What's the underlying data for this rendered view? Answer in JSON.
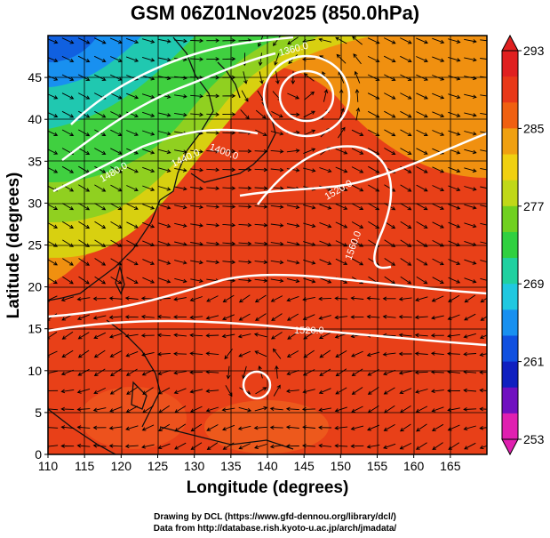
{
  "title": "GSM 06Z01Nov2025 (850.0hPa)",
  "map": {
    "xlabel": "Longitude (degrees)",
    "ylabel": "Latitude  (degrees)",
    "x_ticks": [
      110,
      115,
      120,
      125,
      130,
      135,
      140,
      145,
      150,
      155,
      160,
      165
    ],
    "y_ticks": [
      0,
      5,
      10,
      15,
      20,
      25,
      30,
      35,
      40,
      45
    ],
    "xlim": [
      110,
      170
    ],
    "ylim": [
      0,
      50
    ],
    "field": "temperature",
    "colorbar": {
      "ticks": [
        253,
        261,
        269,
        277,
        285,
        293
      ],
      "range": [
        253,
        293
      ],
      "colors": [
        "#e020b0",
        "#7010c0",
        "#1020c0",
        "#1050e0",
        "#1890f0",
        "#20c8e0",
        "#20d0a0",
        "#30d040",
        "#70d020",
        "#c0d818",
        "#f0d010",
        "#f0a010",
        "#f06010",
        "#e83818",
        "#e02020"
      ]
    },
    "contours": [
      {
        "label": "1520.0",
        "lon": 138.5,
        "lat": 16.5
      },
      {
        "label": "1560.0",
        "lon": 152.5,
        "lat": 28
      },
      {
        "label": "1520.0",
        "lon": 150,
        "lat": 35
      },
      {
        "label": "1480.0",
        "lon": 118,
        "lat": 34
      },
      {
        "label": "1440.0",
        "lon": 126,
        "lat": 37
      },
      {
        "label": "1400.0",
        "lon": 130,
        "lat": 39
      },
      {
        "label": "1360.0",
        "lon": 140,
        "lat": 47
      }
    ],
    "credits": [
      "Drawing by DCL (https://www.gfd-dennou.org/library/dcl/)",
      "Data from http://database.rish.kyoto-u.ac.jp/arch/jmadata/"
    ]
  }
}
